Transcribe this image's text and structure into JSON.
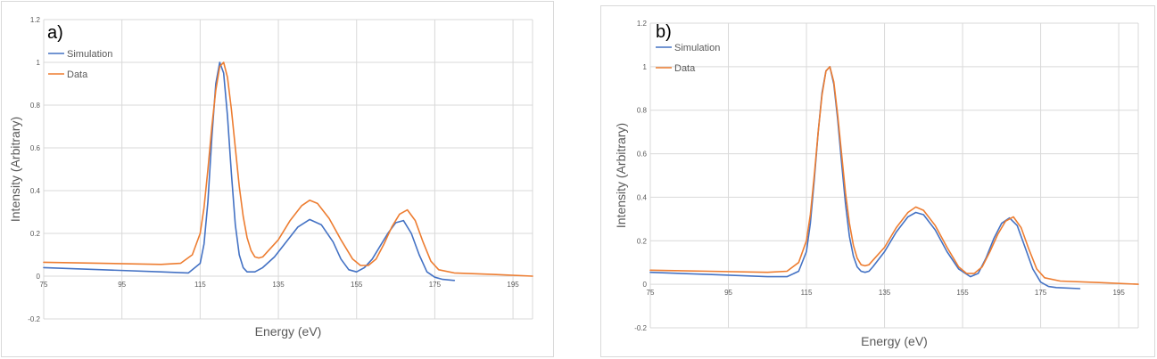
{
  "colors": {
    "simulation": "#4472C4",
    "data": "#ED7D31",
    "grid": "#D9D9D9",
    "text": "#595959"
  },
  "chart_data": [
    {
      "type": "line",
      "panel_label": "a)",
      "xlabel": "Energy (eV)",
      "ylabel": "Intensity (Arbitrary)",
      "xlim": [
        75,
        200
      ],
      "ylim": [
        -0.2,
        1.2
      ],
      "x_ticks": [
        "75",
        "95",
        "115",
        "135",
        "155",
        "175",
        "195"
      ],
      "y_ticks": [
        "-0.2",
        "0",
        "0.2",
        "0.4",
        "0.6",
        "0.8",
        "1",
        "1.2"
      ],
      "grid": true,
      "legend_position": "top-left",
      "series": [
        {
          "name": "Simulation",
          "color": "#4472C4",
          "x": [
            75,
            90,
            105,
            112,
            115,
            116,
            117,
            118,
            119,
            120,
            121,
            122,
            123,
            124,
            125,
            126,
            127,
            129,
            131,
            134,
            137,
            140,
            143,
            146,
            149,
            151,
            153,
            155,
            157,
            159,
            161,
            163,
            165,
            167,
            169,
            171,
            173,
            175,
            177,
            180
          ],
          "y": [
            0.04,
            0.03,
            0.02,
            0.015,
            0.06,
            0.15,
            0.35,
            0.65,
            0.9,
            1.0,
            0.95,
            0.75,
            0.48,
            0.24,
            0.1,
            0.04,
            0.02,
            0.02,
            0.04,
            0.09,
            0.16,
            0.23,
            0.265,
            0.24,
            0.16,
            0.08,
            0.03,
            0.02,
            0.04,
            0.08,
            0.14,
            0.2,
            0.25,
            0.26,
            0.2,
            0.1,
            0.02,
            -0.005,
            -0.015,
            -0.02
          ]
        },
        {
          "name": "Data",
          "color": "#ED7D31",
          "x": [
            75,
            90,
            105,
            110,
            113,
            115,
            116,
            117,
            118,
            119,
            120,
            121,
            122,
            123,
            124,
            125,
            126,
            127,
            128,
            129,
            130,
            131,
            132,
            135,
            138,
            141,
            143,
            145,
            148,
            151,
            154,
            156,
            158,
            160,
            162,
            164,
            166,
            168,
            170,
            172,
            174,
            176,
            180,
            190,
            200
          ],
          "y": [
            0.065,
            0.06,
            0.055,
            0.06,
            0.1,
            0.2,
            0.32,
            0.5,
            0.7,
            0.87,
            0.98,
            1.0,
            0.93,
            0.78,
            0.6,
            0.42,
            0.28,
            0.18,
            0.12,
            0.09,
            0.085,
            0.09,
            0.11,
            0.17,
            0.26,
            0.33,
            0.355,
            0.34,
            0.27,
            0.17,
            0.08,
            0.05,
            0.05,
            0.08,
            0.15,
            0.23,
            0.29,
            0.31,
            0.26,
            0.16,
            0.07,
            0.03,
            0.015,
            0.008,
            0.0
          ]
        }
      ]
    },
    {
      "type": "line",
      "panel_label": "b)",
      "xlabel": "Energy (eV)",
      "ylabel": "Intensity (Arbitrary)",
      "xlim": [
        75,
        200
      ],
      "ylim": [
        -0.2,
        1.2
      ],
      "x_ticks": [
        "75",
        "95",
        "115",
        "135",
        "155",
        "175",
        "195"
      ],
      "y_ticks": [
        "-0.2",
        "0",
        "0.2",
        "0.4",
        "0.6",
        "0.8",
        "1",
        "1.2"
      ],
      "grid": true,
      "legend_position": "top-left",
      "series": [
        {
          "name": "Simulation",
          "color": "#4472C4",
          "x": [
            75,
            90,
            105,
            110,
            113,
            115,
            116,
            117,
            118,
            119,
            120,
            121,
            122,
            123,
            124,
            125,
            126,
            127,
            128,
            129,
            130,
            131,
            132,
            135,
            138,
            141,
            143,
            145,
            148,
            151,
            154,
            157,
            159,
            161,
            163,
            165,
            167,
            169,
            171,
            173,
            175,
            177,
            179,
            185
          ],
          "y": [
            0.055,
            0.045,
            0.035,
            0.035,
            0.06,
            0.15,
            0.28,
            0.48,
            0.7,
            0.88,
            0.98,
            1.0,
            0.92,
            0.76,
            0.56,
            0.37,
            0.22,
            0.13,
            0.08,
            0.06,
            0.055,
            0.06,
            0.08,
            0.15,
            0.24,
            0.31,
            0.33,
            0.32,
            0.25,
            0.15,
            0.07,
            0.035,
            0.05,
            0.12,
            0.21,
            0.28,
            0.305,
            0.27,
            0.17,
            0.07,
            0.01,
            -0.01,
            -0.015,
            -0.02
          ]
        },
        {
          "name": "Data",
          "color": "#ED7D31",
          "x": [
            75,
            90,
            105,
            110,
            113,
            115,
            116,
            117,
            118,
            119,
            120,
            121,
            122,
            123,
            124,
            125,
            126,
            127,
            128,
            129,
            130,
            131,
            132,
            135,
            138,
            141,
            143,
            145,
            148,
            151,
            154,
            156,
            158,
            160,
            162,
            164,
            166,
            168,
            170,
            172,
            174,
            176,
            180,
            190,
            200
          ],
          "y": [
            0.065,
            0.06,
            0.055,
            0.06,
            0.1,
            0.2,
            0.32,
            0.5,
            0.7,
            0.87,
            0.98,
            1.0,
            0.93,
            0.78,
            0.6,
            0.42,
            0.28,
            0.18,
            0.12,
            0.09,
            0.085,
            0.09,
            0.11,
            0.17,
            0.26,
            0.33,
            0.355,
            0.34,
            0.27,
            0.17,
            0.08,
            0.05,
            0.05,
            0.08,
            0.15,
            0.23,
            0.29,
            0.31,
            0.26,
            0.16,
            0.07,
            0.03,
            0.015,
            0.008,
            0.0
          ]
        }
      ]
    }
  ]
}
